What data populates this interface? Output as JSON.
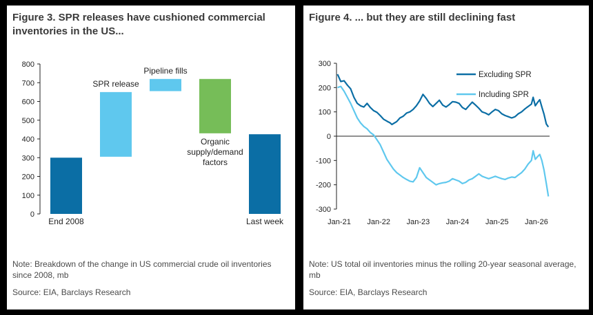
{
  "fig3": {
    "title_line1": "Figure 3. SPR releases have cushioned commercial",
    "title_line2": "inventories in the US...",
    "note_line1": "Note: Breakdown of the change in US commercial crude oil inventories",
    "note_line2": "since 2008, mb",
    "source": "Source: EIA, Barclays Research"
  },
  "fig4": {
    "title": "Figure 4. ... but they are still declining fast",
    "note_line1": "Note: US total oil inventories minus the rolling 20-year seasonal average,",
    "note_line2": "mb",
    "source": "Source: EIA, Barclays Research"
  },
  "chart_data": [
    {
      "type": "bar",
      "subtype": "waterfall",
      "title": "",
      "categories": [
        "End 2008",
        "SPR release",
        "Pipeline fills",
        "Organic supply/demand factors",
        "Last week"
      ],
      "label_lines": [
        [
          "End 2008"
        ],
        [
          "SPR release"
        ],
        [
          "Pipeline fills"
        ],
        [
          "Organic",
          "supply/demand",
          "factors"
        ],
        [
          "Last week"
        ]
      ],
      "bars": [
        {
          "name": "End 2008",
          "bottom": 0,
          "top": 300,
          "color": "#0b6ea5"
        },
        {
          "name": "SPR release",
          "bottom": 305,
          "top": 650,
          "color": "#5fc8ee"
        },
        {
          "name": "Pipeline fills",
          "bottom": 655,
          "top": 720,
          "color": "#5fc8ee"
        },
        {
          "name": "Organic supply/demand factors",
          "bottom": 430,
          "top": 720,
          "color": "#76bd58"
        },
        {
          "name": "Last week",
          "bottom": 0,
          "top": 425,
          "color": "#0b6ea5"
        }
      ],
      "yticks": [
        "0",
        "100",
        "200",
        "300",
        "400",
        "500",
        "600",
        "700",
        "800"
      ],
      "ylim": [
        0,
        800
      ],
      "grid": false
    },
    {
      "type": "line",
      "title": "",
      "x_range": [
        "2020-12",
        "2026-05"
      ],
      "xticks": [
        "Jan-21",
        "Jan-22",
        "Jan-23",
        "Jan-24",
        "Jan-25",
        "Jan-26"
      ],
      "yticks": [
        "300",
        "200",
        "100",
        "0",
        "-100",
        "-200",
        "-300"
      ],
      "ylim": [
        -300,
        300
      ],
      "legend_position": "top-right",
      "grid": false,
      "series": [
        {
          "name": "Excluding SPR",
          "color": "#0b6ea5",
          "points": [
            [
              "2020-12-15",
              255
            ],
            [
              "2021-01-15",
              225
            ],
            [
              "2021-02-15",
              228
            ],
            [
              "2021-03-15",
              210
            ],
            [
              "2021-04-15",
              195
            ],
            [
              "2021-05-15",
              160
            ],
            [
              "2021-06-15",
              135
            ],
            [
              "2021-07-15",
              125
            ],
            [
              "2021-08-15",
              120
            ],
            [
              "2021-09-15",
              135
            ],
            [
              "2021-10-15",
              118
            ],
            [
              "2021-11-15",
              105
            ],
            [
              "2021-12-15",
              98
            ],
            [
              "2022-01-15",
              85
            ],
            [
              "2022-02-15",
              70
            ],
            [
              "2022-03-15",
              62
            ],
            [
              "2022-04-15",
              55
            ],
            [
              "2022-05-01",
              48
            ],
            [
              "2022-06-15",
              60
            ],
            [
              "2022-07-15",
              75
            ],
            [
              "2022-08-15",
              82
            ],
            [
              "2022-09-15",
              95
            ],
            [
              "2022-10-15",
              100
            ],
            [
              "2022-11-15",
              110
            ],
            [
              "2022-12-15",
              125
            ],
            [
              "2023-01-15",
              145
            ],
            [
              "2023-02-15",
              172
            ],
            [
              "2023-03-15",
              155
            ],
            [
              "2023-04-15",
              135
            ],
            [
              "2023-05-15",
              122
            ],
            [
              "2023-06-15",
              135
            ],
            [
              "2023-07-15",
              148
            ],
            [
              "2023-08-15",
              128
            ],
            [
              "2023-09-15",
              120
            ],
            [
              "2023-10-15",
              130
            ],
            [
              "2023-11-15",
              142
            ],
            [
              "2023-12-15",
              140
            ],
            [
              "2024-01-15",
              135
            ],
            [
              "2024-02-15",
              118
            ],
            [
              "2024-03-15",
              110
            ],
            [
              "2024-04-15",
              125
            ],
            [
              "2024-05-15",
              140
            ],
            [
              "2024-06-15",
              128
            ],
            [
              "2024-07-15",
              115
            ],
            [
              "2024-08-15",
              100
            ],
            [
              "2024-09-15",
              95
            ],
            [
              "2024-10-15",
              88
            ],
            [
              "2024-11-15",
              100
            ],
            [
              "2024-12-15",
              110
            ],
            [
              "2025-01-15",
              105
            ],
            [
              "2025-02-15",
              92
            ],
            [
              "2025-03-15",
              85
            ],
            [
              "2025-04-15",
              80
            ],
            [
              "2025-05-15",
              75
            ],
            [
              "2025-06-15",
              80
            ],
            [
              "2025-07-15",
              92
            ],
            [
              "2025-08-15",
              100
            ],
            [
              "2025-09-15",
              112
            ],
            [
              "2025-10-15",
              122
            ],
            [
              "2025-11-15",
              132
            ],
            [
              "2025-12-01",
              160
            ],
            [
              "2025-12-20",
              125
            ],
            [
              "2026-01-10",
              138
            ],
            [
              "2026-02-01",
              150
            ],
            [
              "2026-02-20",
              120
            ],
            [
              "2026-03-10",
              90
            ],
            [
              "2026-04-01",
              50
            ],
            [
              "2026-04-20",
              38
            ]
          ]
        },
        {
          "name": "Including SPR",
          "color": "#5fc8ee",
          "points": [
            [
              "2020-12-15",
              200
            ],
            [
              "2021-01-15",
              205
            ],
            [
              "2021-02-15",
              185
            ],
            [
              "2021-03-15",
              160
            ],
            [
              "2021-04-15",
              135
            ],
            [
              "2021-05-15",
              105
            ],
            [
              "2021-06-15",
              75
            ],
            [
              "2021-07-15",
              55
            ],
            [
              "2021-08-15",
              40
            ],
            [
              "2021-09-15",
              30
            ],
            [
              "2021-10-15",
              15
            ],
            [
              "2021-11-15",
              5
            ],
            [
              "2021-12-15",
              -15
            ],
            [
              "2022-01-15",
              -35
            ],
            [
              "2022-02-15",
              -65
            ],
            [
              "2022-03-15",
              -95
            ],
            [
              "2022-04-15",
              -115
            ],
            [
              "2022-05-15",
              -135
            ],
            [
              "2022-06-15",
              -150
            ],
            [
              "2022-07-15",
              -160
            ],
            [
              "2022-08-15",
              -170
            ],
            [
              "2022-09-15",
              -178
            ],
            [
              "2022-10-15",
              -185
            ],
            [
              "2022-11-15",
              -188
            ],
            [
              "2022-12-15",
              -170
            ],
            [
              "2023-01-15",
              -130
            ],
            [
              "2023-02-15",
              -150
            ],
            [
              "2023-03-15",
              -170
            ],
            [
              "2023-04-15",
              -180
            ],
            [
              "2023-05-15",
              -190
            ],
            [
              "2023-06-15",
              -200
            ],
            [
              "2023-07-15",
              -195
            ],
            [
              "2023-08-15",
              -192
            ],
            [
              "2023-09-15",
              -190
            ],
            [
              "2023-10-15",
              -185
            ],
            [
              "2023-11-15",
              -175
            ],
            [
              "2023-12-15",
              -180
            ],
            [
              "2024-01-15",
              -185
            ],
            [
              "2024-02-15",
              -195
            ],
            [
              "2024-03-15",
              -190
            ],
            [
              "2024-04-15",
              -180
            ],
            [
              "2024-05-15",
              -175
            ],
            [
              "2024-06-15",
              -165
            ],
            [
              "2024-07-15",
              -155
            ],
            [
              "2024-08-15",
              -165
            ],
            [
              "2024-09-15",
              -170
            ],
            [
              "2024-10-15",
              -175
            ],
            [
              "2024-11-15",
              -170
            ],
            [
              "2024-12-15",
              -165
            ],
            [
              "2025-01-15",
              -170
            ],
            [
              "2025-02-15",
              -175
            ],
            [
              "2025-03-15",
              -178
            ],
            [
              "2025-04-15",
              -172
            ],
            [
              "2025-05-15",
              -168
            ],
            [
              "2025-06-15",
              -170
            ],
            [
              "2025-07-15",
              -160
            ],
            [
              "2025-08-15",
              -150
            ],
            [
              "2025-09-15",
              -135
            ],
            [
              "2025-10-15",
              -115
            ],
            [
              "2025-11-15",
              -100
            ],
            [
              "2025-12-01",
              -60
            ],
            [
              "2025-12-20",
              -95
            ],
            [
              "2026-01-10",
              -85
            ],
            [
              "2026-02-01",
              -75
            ],
            [
              "2026-02-20",
              -100
            ],
            [
              "2026-03-10",
              -140
            ],
            [
              "2026-04-01",
              -195
            ],
            [
              "2026-04-20",
              -248
            ]
          ]
        }
      ]
    }
  ]
}
